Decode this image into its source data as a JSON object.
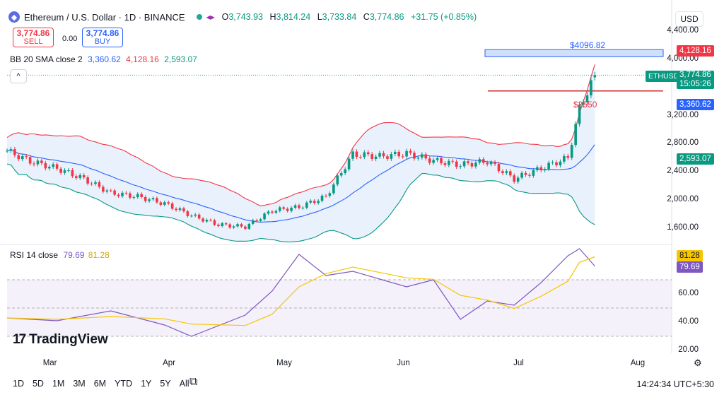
{
  "header": {
    "logo_glyph": "◆",
    "title": "Ethereum / U.S. Dollar · 1D · BINANCE",
    "alert_icon": "◂▸",
    "open_label": "O",
    "open": "3,743.93",
    "high_label": "H",
    "high": "3,814.24",
    "low_label": "L",
    "low": "3,733.84",
    "close_label": "C",
    "close": "3,774.86",
    "change": "+31.75 (+0.85%)"
  },
  "trade": {
    "sell_price": "3,774.86",
    "sell_label": "SELL",
    "spread": "0.00",
    "buy_price": "3,774.86",
    "buy_label": "BUY"
  },
  "indicators": {
    "bb_label": "BB 20 SMA close 2",
    "bb_basis": "3,360.62",
    "bb_upper": "4,128.16",
    "bb_lower": "2,593.07",
    "rsi_label": "RSI 14 close",
    "rsi_value": "79.69",
    "rsi_ma": "81.28"
  },
  "collapse_glyph": "^",
  "currency_button": "USD",
  "price_axis": {
    "ticks": [
      {
        "label": "4,400.00",
        "v": 4400
      },
      {
        "label": "4,000.00",
        "v": 4000
      },
      {
        "label": "3,200.00",
        "v": 3200
      },
      {
        "label": "2,800.00",
        "v": 2800
      },
      {
        "label": "2,400.00",
        "v": 2400
      },
      {
        "label": "2,000.00",
        "v": 2000
      },
      {
        "label": "1,600.00",
        "v": 1600
      }
    ],
    "tags": {
      "upper": "4,128.16",
      "symbol": "ETHUSD",
      "last": "3,774.86",
      "countdown": "15:05:26",
      "basis": "3,360.62",
      "lower": "2,593.07"
    }
  },
  "rsi_axis": {
    "ticks": [
      {
        "label": "60.00",
        "v": 60
      },
      {
        "label": "40.00",
        "v": 40
      },
      {
        "label": "20.00",
        "v": 20
      }
    ],
    "tags": {
      "ma": "81.28",
      "rsi": "79.69"
    }
  },
  "annotations": {
    "resistance": "$4096.82",
    "support": "$3550"
  },
  "months": [
    "Mar",
    "Apr",
    "May",
    "Jun",
    "Jul",
    "Aug"
  ],
  "timeframes": [
    "1D",
    "5D",
    "1M",
    "3M",
    "6M",
    "YTD",
    "1Y",
    "5Y",
    "All"
  ],
  "clock": "14:24:34 UTC+5:30",
  "brand": "TradingView",
  "brand_glyph": "17",
  "settings_icon": "⚙",
  "calendar_icon": "⧉",
  "colors": {
    "up": "#089981",
    "down": "#f23645",
    "basis": "#2962ff",
    "upper": "#f23645",
    "lower": "#089981",
    "rsi": "#7e57c2",
    "rsi_ma": "#f7c600",
    "band_fill": "#e3eefc"
  },
  "chart_data": {
    "type": "candlestick",
    "symbol": "ETHUSD",
    "interval": "1D",
    "exchange": "BINANCE",
    "ylim": [
      1400,
      4500
    ],
    "x_range": [
      "2024-02-24",
      "2024-08-15"
    ],
    "last_candle": {
      "date": "2024-07-26",
      "open": 3743.93,
      "high": 3814.24,
      "low": 3733.84,
      "close": 3774.86
    },
    "close_path": [
      {
        "date": "2024-02-24",
        "close": 2700
      },
      {
        "date": "2024-03-01",
        "close": 2550
      },
      {
        "date": "2024-03-08",
        "close": 2450
      },
      {
        "date": "2024-03-15",
        "close": 2300
      },
      {
        "date": "2024-03-22",
        "close": 2100
      },
      {
        "date": "2024-03-29",
        "close": 2050
      },
      {
        "date": "2024-04-05",
        "close": 1950
      },
      {
        "date": "2024-04-12",
        "close": 1780
      },
      {
        "date": "2024-04-19",
        "close": 1650
      },
      {
        "date": "2024-04-26",
        "close": 1620
      },
      {
        "date": "2024-05-03",
        "close": 1850
      },
      {
        "date": "2024-05-10",
        "close": 1900
      },
      {
        "date": "2024-05-17",
        "close": 2050
      },
      {
        "date": "2024-05-24",
        "close": 2650
      },
      {
        "date": "2024-05-31",
        "close": 2620
      },
      {
        "date": "2024-06-07",
        "close": 2660
      },
      {
        "date": "2024-06-14",
        "close": 2560
      },
      {
        "date": "2024-06-21",
        "close": 2500
      },
      {
        "date": "2024-06-28",
        "close": 2550
      },
      {
        "date": "2024-07-05",
        "close": 2300
      },
      {
        "date": "2024-07-12",
        "close": 2450
      },
      {
        "date": "2024-07-19",
        "close": 2600
      },
      {
        "date": "2024-07-22",
        "close": 3300
      },
      {
        "date": "2024-07-26",
        "close": 3774.86
      }
    ],
    "bollinger": {
      "period": 20,
      "stddev": 2,
      "basis": 3360.62,
      "upper": 4128.16,
      "lower": 2593.07
    },
    "levels": [
      {
        "label": "$4096.82",
        "value": 4096.82,
        "kind": "resistance-zone"
      },
      {
        "label": "$3550",
        "value": 3550,
        "kind": "support-line"
      }
    ],
    "rsi": {
      "period": 14,
      "value": 79.69,
      "ma": 81.28,
      "ylim": [
        15,
        95
      ],
      "bands": [
        30,
        70
      ],
      "points": [
        {
          "date": "2024-02-24",
          "v": 43
        },
        {
          "date": "2024-03-08",
          "v": 41
        },
        {
          "date": "2024-03-22",
          "v": 48
        },
        {
          "date": "2024-04-05",
          "v": 38
        },
        {
          "date": "2024-04-12",
          "v": 30
        },
        {
          "date": "2024-04-26",
          "v": 45
        },
        {
          "date": "2024-05-03",
          "v": 62
        },
        {
          "date": "2024-05-10",
          "v": 88
        },
        {
          "date": "2024-05-17",
          "v": 73
        },
        {
          "date": "2024-05-24",
          "v": 76
        },
        {
          "date": "2024-06-07",
          "v": 65
        },
        {
          "date": "2024-06-14",
          "v": 70
        },
        {
          "date": "2024-06-21",
          "v": 42
        },
        {
          "date": "2024-06-28",
          "v": 55
        },
        {
          "date": "2024-07-05",
          "v": 52
        },
        {
          "date": "2024-07-12",
          "v": 68
        },
        {
          "date": "2024-07-19",
          "v": 87
        },
        {
          "date": "2024-07-22",
          "v": 92
        },
        {
          "date": "2024-07-26",
          "v": 79.69
        }
      ]
    }
  }
}
